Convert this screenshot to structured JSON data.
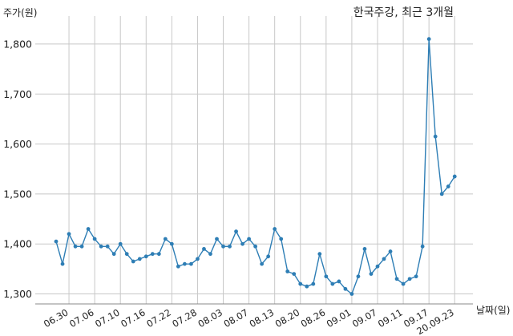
{
  "chart_data": {
    "type": "line",
    "title": "한국주강, 최근 3개월",
    "xlabel": "날짜(일)",
    "ylabel": "주가(원)",
    "ylim": [
      1280,
      1840
    ],
    "yticks": [
      1300,
      1400,
      1500,
      1600,
      1700,
      1800
    ],
    "ytick_labels": [
      "1,300",
      "1,400",
      "1,500",
      "1,600",
      "1,700",
      "1,800"
    ],
    "grid": true,
    "color": "#2e7eb5",
    "x_labels": [
      {
        "index": 2,
        "label": "06.30"
      },
      {
        "index": 6,
        "label": "07.06"
      },
      {
        "index": 10,
        "label": "07.10"
      },
      {
        "index": 14,
        "label": "07.16"
      },
      {
        "index": 18,
        "label": "07.22"
      },
      {
        "index": 22,
        "label": "07.28"
      },
      {
        "index": 26,
        "label": "08.03"
      },
      {
        "index": 30,
        "label": "08.07"
      },
      {
        "index": 34,
        "label": "08.13"
      },
      {
        "index": 38,
        "label": "08.20"
      },
      {
        "index": 42,
        "label": "08.26"
      },
      {
        "index": 46,
        "label": "09.01"
      },
      {
        "index": 50,
        "label": "09.07"
      },
      {
        "index": 54,
        "label": "09.11"
      },
      {
        "index": 58,
        "label": "09.17"
      },
      {
        "index": 62,
        "label": "20.09.23"
      }
    ],
    "series": [
      {
        "values": [
          1405,
          1360,
          1420,
          1395,
          1395,
          1430,
          1410,
          1395,
          1395,
          1380,
          1400,
          1380,
          1365,
          1370,
          1375,
          1380,
          1380,
          1410,
          1400,
          1355,
          1360,
          1360,
          1370,
          1390,
          1380,
          1410,
          1395,
          1395,
          1425,
          1400,
          1410,
          1395,
          1360,
          1375,
          1430,
          1410,
          1345,
          1340,
          1320,
          1315,
          1320,
          1380,
          1335,
          1320,
          1325,
          1310,
          1300,
          1335,
          1390,
          1340,
          1355,
          1370,
          1385,
          1330,
          1320,
          1330,
          1335,
          1395,
          1810,
          1615,
          1500,
          1515,
          1535
        ]
      }
    ]
  }
}
